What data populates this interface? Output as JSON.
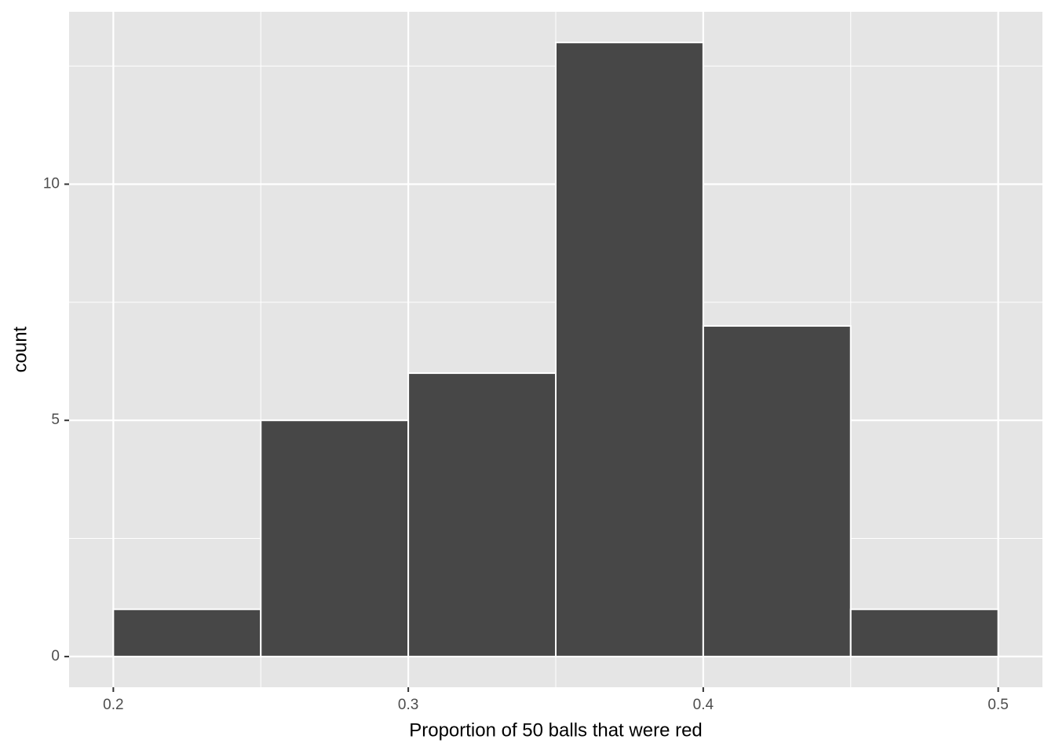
{
  "chart_data": {
    "type": "histogram",
    "x_label": "Proportion of 50 balls that were red",
    "y_label": "count",
    "bins": [
      0.2,
      0.25,
      0.3,
      0.35,
      0.4,
      0.45,
      0.5
    ],
    "values": [
      1,
      5,
      6,
      13,
      7,
      1
    ],
    "color": "#474747",
    "edge_color": "#ffffff",
    "xlim": [
      0.185,
      0.515
    ],
    "ylim": [
      -0.65,
      13.65
    ],
    "xticks": [
      0.2,
      0.3,
      0.4,
      0.5
    ],
    "yticks": [
      0,
      5,
      10
    ],
    "x_minor_grid": [
      0.25,
      0.35,
      0.45
    ],
    "y_minor_grid": [
      2.5,
      7.5,
      12.5
    ],
    "grid": true
  }
}
